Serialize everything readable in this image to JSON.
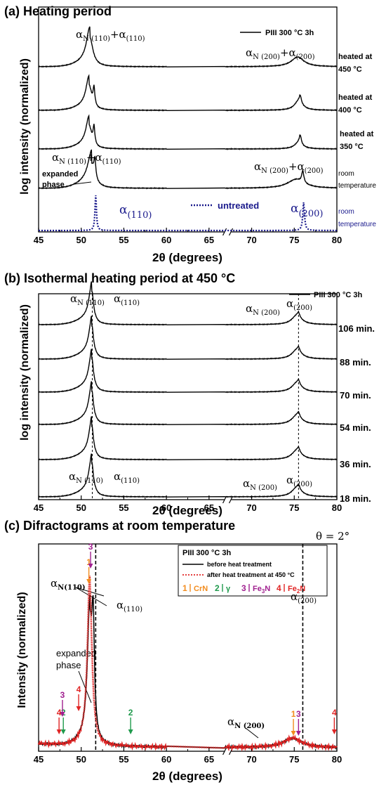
{
  "chart_data": [
    {
      "id": "a",
      "type": "line",
      "title": "(a) Heating period",
      "xlabel": "2θ (degrees)",
      "ylabel": "log intensity (normalized)",
      "xlim": [
        45,
        80
      ],
      "x_ticks": [
        "45",
        "50",
        "55",
        "60",
        "65",
        "70",
        "75",
        "80"
      ],
      "axis_break": "between 60 and 70",
      "legend": {
        "solid": "PIII 300 °C 3h",
        "dotted": "untreated"
      },
      "series": [
        {
          "label_lines": [
            "heated at",
            "450 °C"
          ],
          "style": "solid",
          "color": "#000000"
        },
        {
          "label_lines": [
            "heated at",
            "400 °C"
          ],
          "style": "solid",
          "color": "#000000"
        },
        {
          "label_lines": [
            "heated at",
            "350 °C"
          ],
          "style": "solid",
          "color": "#000000"
        },
        {
          "label_lines": [
            "room",
            "temperature"
          ],
          "style": "solid",
          "color": "#000000"
        },
        {
          "label_lines": [
            "room",
            "temperature"
          ],
          "style": "dotted",
          "color": "#1a1a8c"
        }
      ],
      "annotations": {
        "top_left": {
          "a": "α",
          "s1": "N (110)",
          "p": "+α",
          "s2": "(110)"
        },
        "top_right": {
          "a": "α",
          "s1": "N (200)",
          "p": "+α",
          "s2": "(200)"
        },
        "mid_left": {
          "a": "α",
          "s1": "N (110)",
          "p": "+α",
          "s2": "(110)"
        },
        "mid_right": {
          "a": "α",
          "s1": "N (200)",
          "p": "+α",
          "s2": "(200)"
        },
        "expanded": [
          "expanded",
          "phase"
        ],
        "untr_left": {
          "a": "α",
          "s": "(110)"
        },
        "untr_right": {
          "a": "α",
          "s": "(200)"
        }
      }
    },
    {
      "id": "b",
      "type": "line",
      "title": "(b) Isothermal heating period at 450 °C",
      "xlabel": "2θ (degrees)",
      "ylabel": "log intensity (normalized)",
      "xlim": [
        45,
        80
      ],
      "x_ticks": [
        "45",
        "50",
        "55",
        "60",
        "65",
        "70",
        "75",
        "80"
      ],
      "axis_break": "between 60 and 70",
      "legend": {
        "solid": "PIII 300 °C 3h"
      },
      "reference_lines_2theta": [
        51.3,
        75.5
      ],
      "series": [
        {
          "label": "106 min."
        },
        {
          "label": "88 min."
        },
        {
          "label": "70 min."
        },
        {
          "label": "54 min."
        },
        {
          "label": "36 min."
        },
        {
          "label": "18 min."
        }
      ],
      "annotations": {
        "top_aN110": {
          "a": "α",
          "s": "N (110)"
        },
        "top_a110": {
          "a": "α",
          "s": "(110)"
        },
        "top_aN200": {
          "a": "α",
          "s": "N (200)"
        },
        "top_a200": {
          "a": "α",
          "s": "(200)"
        },
        "bot_aN110": {
          "a": "α",
          "s": "N (110)"
        },
        "bot_a110": {
          "a": "α",
          "s": "(110)"
        },
        "bot_aN200": {
          "a": "α",
          "s": "N (200)"
        },
        "bot_a200": {
          "a": "α",
          "s": "(200)"
        }
      }
    },
    {
      "id": "c",
      "type": "line",
      "title": "(c) Difractograms at room temperature",
      "corner_note": "θ = 2°",
      "xlabel": "2θ (degrees)",
      "ylabel": "Intensity (normalized)",
      "xlim": [
        45,
        80
      ],
      "x_ticks": [
        "45",
        "50",
        "55",
        "60",
        "65",
        "70",
        "75",
        "80"
      ],
      "axis_break": "between 60 and 70",
      "reference_lines_2theta": [
        51.7,
        76.0
      ],
      "legend": {
        "title": "PIII 300 °C 3h",
        "solid": "before heat treatment",
        "dotted": "after heat treatment at 450 °C",
        "phases": [
          {
            "n": "1",
            "name": "CrN",
            "color": "#f28c1e"
          },
          {
            "n": "2",
            "name": "γ",
            "color": "#1f9a4c"
          },
          {
            "n": "3",
            "name": "Fe",
            "sub": "3",
            "tail": "N",
            "color": "#a0208f"
          },
          {
            "n": "4",
            "name": "Fe",
            "sub": "2",
            "tail": "N",
            "color": "#e02424"
          }
        ]
      },
      "series": [
        {
          "name": "before heat treatment",
          "color": "#000000",
          "style": "solid"
        },
        {
          "name": "after heat treatment at 450 °C",
          "color": "#e02424",
          "style": "dotted"
        }
      ],
      "phase_markers": [
        {
          "n": "4",
          "x": 47.4,
          "color": "#e02424"
        },
        {
          "n": "2",
          "x": 47.9,
          "color": "#1f9a4c"
        },
        {
          "n": "3",
          "x": 47.8,
          "color": "#a0208f"
        },
        {
          "n": "4",
          "x": 49.7,
          "color": "#e02424"
        },
        {
          "n": "1",
          "x": 50.9,
          "color": "#f28c1e"
        },
        {
          "n": "3",
          "x": 51.1,
          "color": "#a0208f"
        },
        {
          "n": "2",
          "x": 55.8,
          "color": "#1f9a4c"
        },
        {
          "n": "1",
          "x": 74.9,
          "color": "#f28c1e"
        },
        {
          "n": "3",
          "x": 75.5,
          "color": "#a0208f"
        },
        {
          "n": "4",
          "x": 79.7,
          "color": "#e02424"
        }
      ],
      "annotations": {
        "aN110": {
          "a": "α",
          "s": "N(110)"
        },
        "a110": {
          "a": "α",
          "s": "(110)"
        },
        "a200": {
          "a": "α",
          "s": "(200)"
        },
        "aN200": {
          "a": "α",
          "s": "N (200)"
        },
        "expanded": [
          "expanded",
          "phase"
        ]
      }
    }
  ]
}
